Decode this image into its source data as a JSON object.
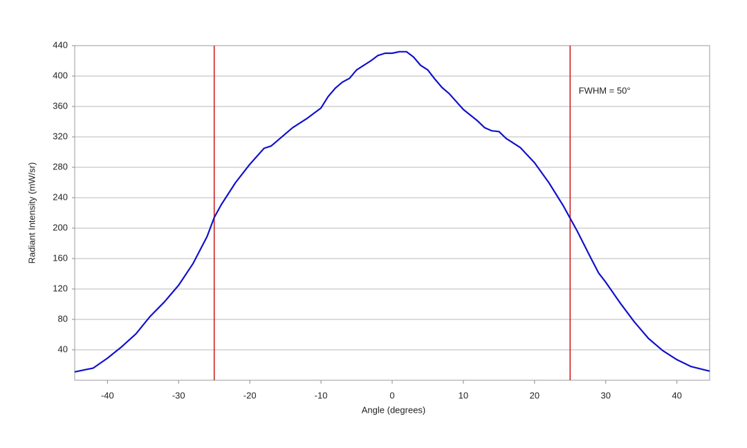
{
  "chart_data": {
    "type": "line",
    "xlabel": "Angle (degrees)",
    "ylabel": "Radiant Intensity (mW/sr)",
    "x": [
      -44.6,
      -42,
      -40,
      -38,
      -36,
      -34,
      -32,
      -30,
      -28,
      -26,
      -25,
      -24,
      -22,
      -20,
      -18,
      -17,
      -16,
      -14,
      -12,
      -11,
      -10,
      -9,
      -8,
      -7,
      -6,
      -5,
      -4,
      -3,
      -2,
      -1,
      0,
      1,
      2,
      3,
      4,
      5,
      6,
      7,
      8,
      10,
      12,
      13,
      14,
      15,
      16,
      18,
      20,
      22,
      24,
      25,
      26,
      28,
      29,
      30,
      32,
      34,
      36,
      38,
      40,
      42,
      44.6
    ],
    "series": [
      {
        "color": "#1010cc",
        "values": [
          11,
          16,
          29,
          44,
          61,
          84,
          103,
          125,
          153,
          189,
          214,
          231,
          260,
          284,
          305,
          308,
          316,
          332,
          344,
          351,
          358,
          373,
          384,
          392,
          397,
          408,
          414,
          420,
          427,
          430,
          430,
          432,
          432,
          425,
          414,
          408,
          396,
          385,
          377,
          356,
          341,
          332,
          328,
          327,
          318,
          306,
          286,
          260,
          230,
          213,
          196,
          159,
          141,
          129,
          102,
          77,
          55,
          39,
          27,
          18,
          12
        ]
      }
    ],
    "xlim": [
      -44.6,
      44.6
    ],
    "ylim": [
      0,
      440
    ],
    "xticks": [
      -40,
      -30,
      -20,
      -10,
      0,
      10,
      20,
      30,
      40
    ],
    "yticks": [
      40,
      80,
      120,
      160,
      200,
      240,
      280,
      320,
      360,
      400,
      440
    ],
    "grid": true,
    "vlines": [
      -25,
      25
    ],
    "vline_color": "#cc2020",
    "annotations": [
      {
        "text": "FWHM = 50°",
        "x": 26.2,
        "y": 380
      }
    ]
  }
}
